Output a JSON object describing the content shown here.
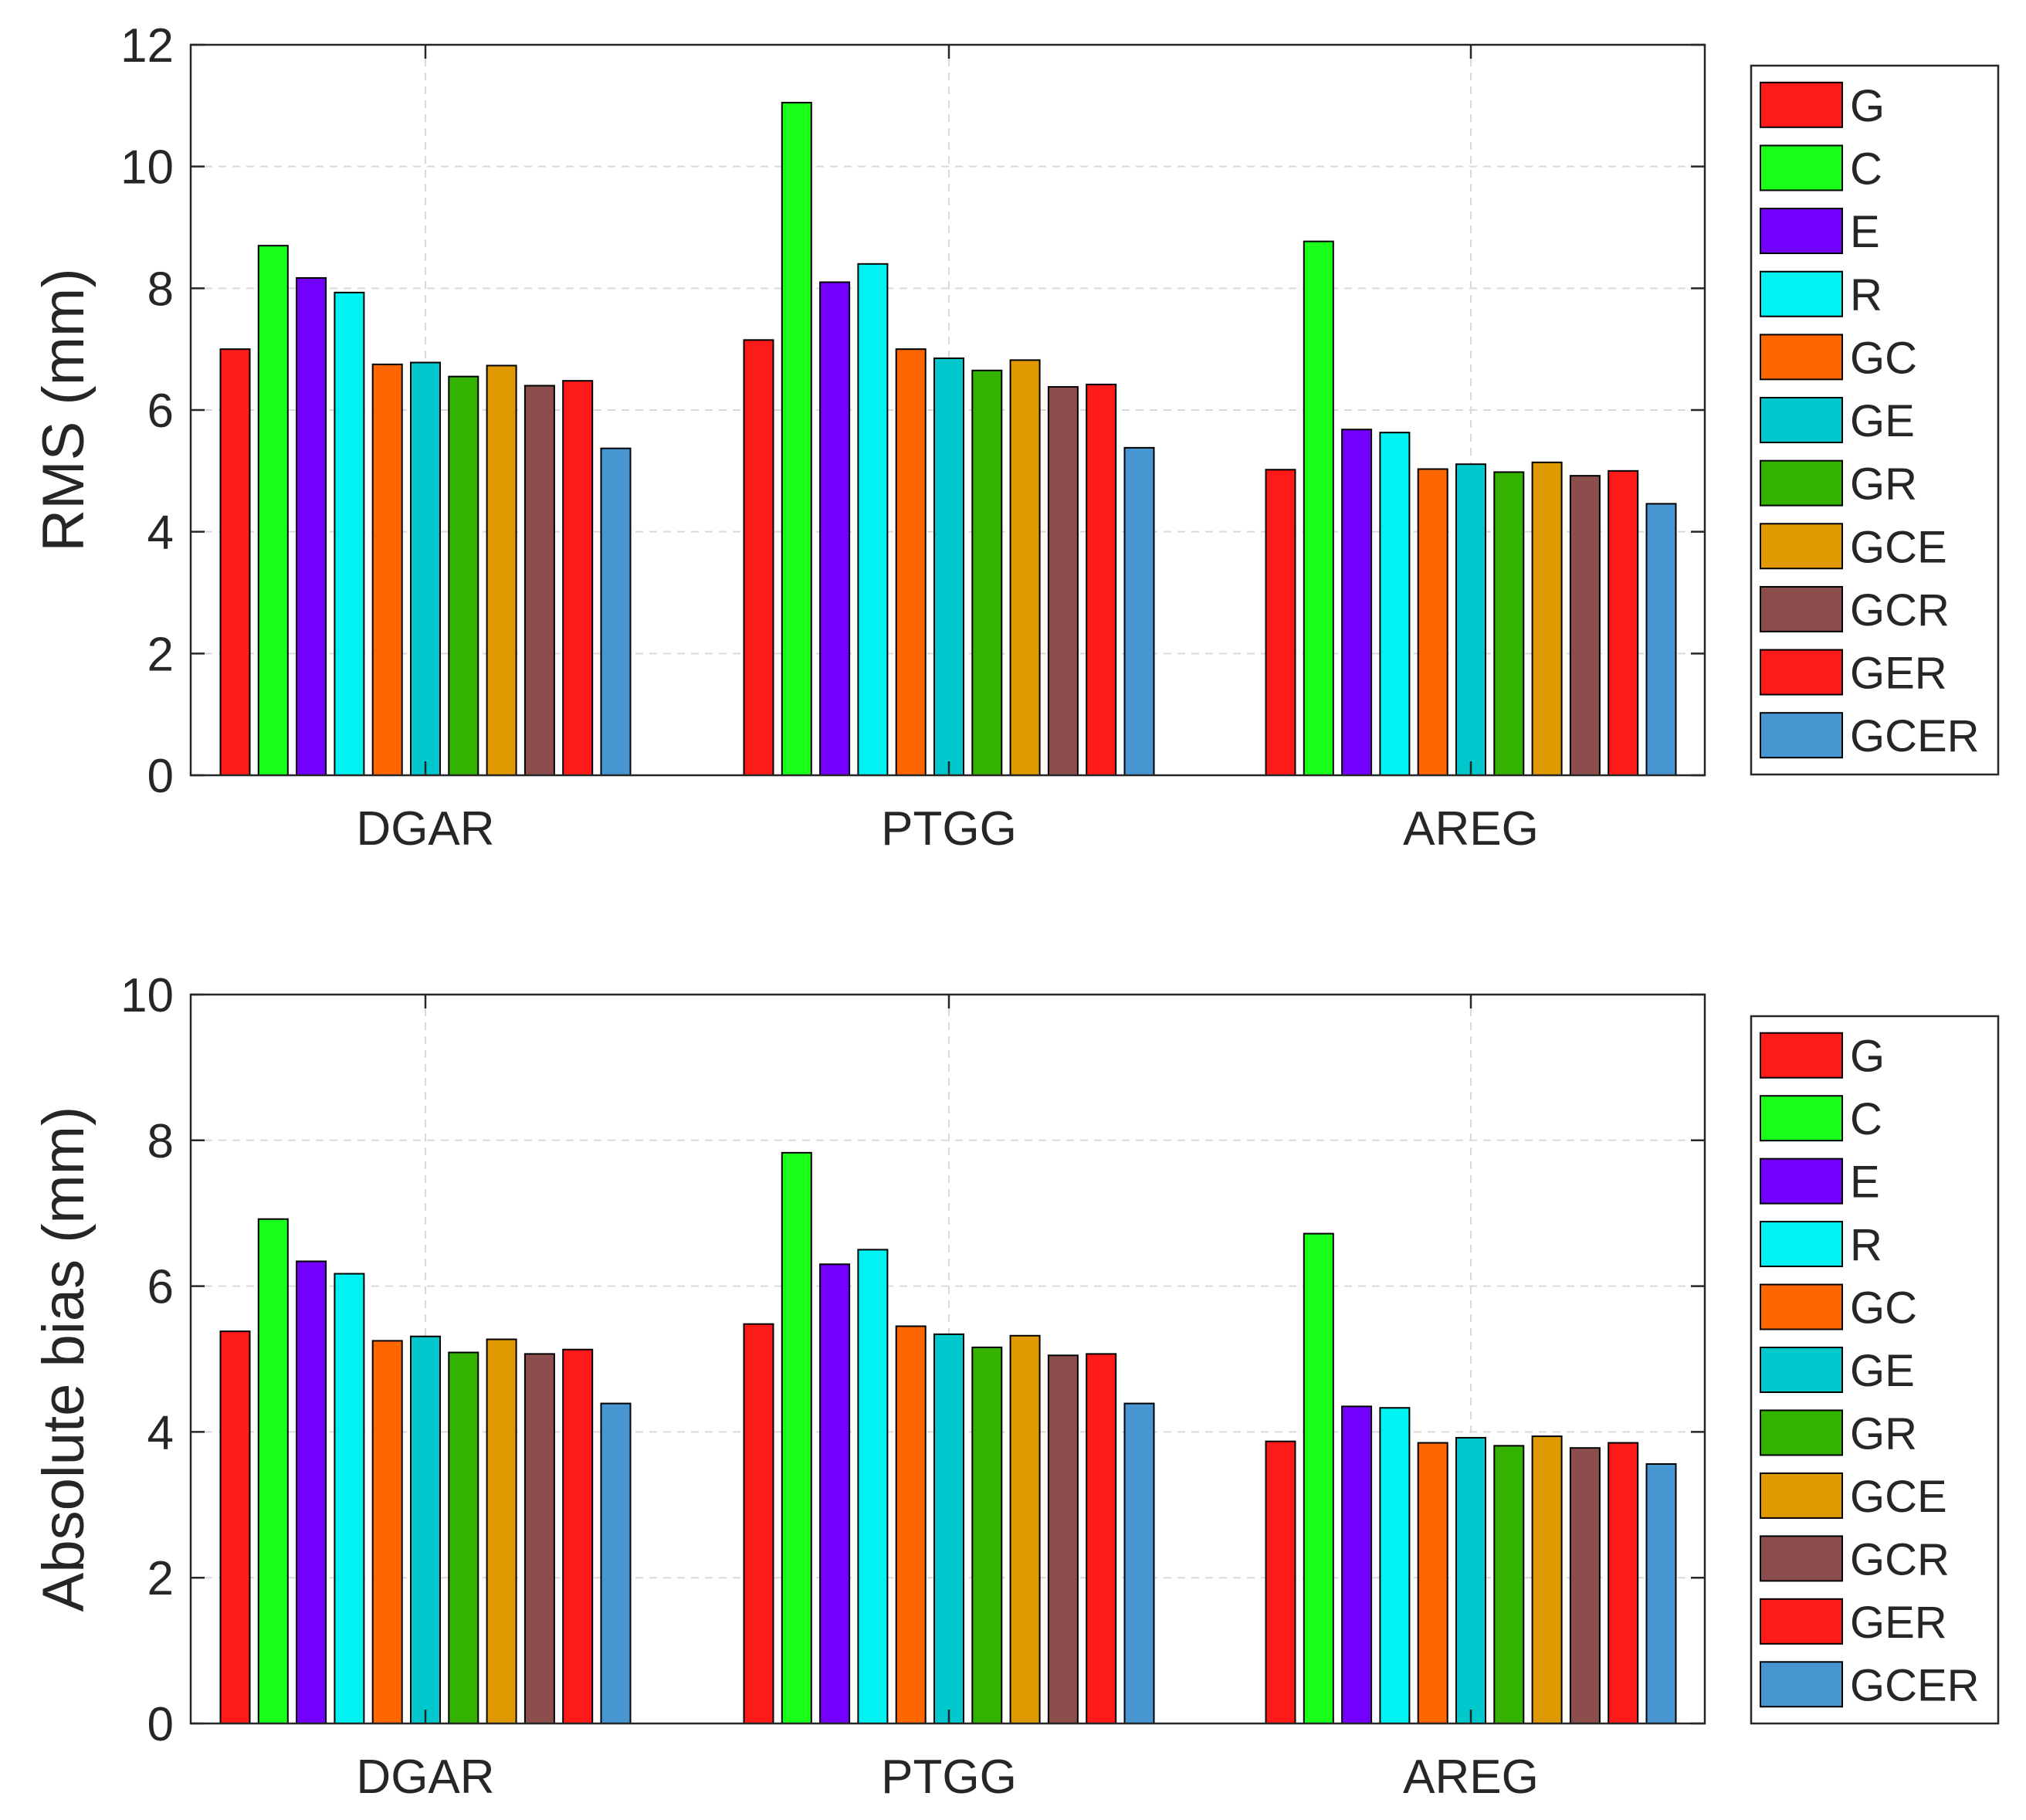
{
  "chart_data": [
    {
      "type": "bar",
      "title": "",
      "xlabel": "",
      "ylabel": "RMS (mm)",
      "ylim": [
        0,
        12
      ],
      "yticks": [
        0,
        2,
        4,
        6,
        8,
        10,
        12
      ],
      "grid": true,
      "legend_position": "outside-right",
      "categories": [
        "DGAR",
        "PTGG",
        "AREG"
      ],
      "series": [
        {
          "name": "G",
          "color": "#ff1a1a",
          "values": [
            7.0,
            7.15,
            5.02
          ]
        },
        {
          "name": "C",
          "color": "#1aff1a",
          "values": [
            8.7,
            11.05,
            8.77
          ]
        },
        {
          "name": "E",
          "color": "#7300ff",
          "values": [
            8.17,
            8.1,
            5.68
          ]
        },
        {
          "name": "R",
          "color": "#00f2f2",
          "values": [
            7.93,
            8.4,
            5.63
          ]
        },
        {
          "name": "GC",
          "color": "#ff6600",
          "values": [
            6.75,
            7.0,
            5.03
          ]
        },
        {
          "name": "GE",
          "color": "#00c8cc",
          "values": [
            6.78,
            6.85,
            5.11
          ]
        },
        {
          "name": "GR",
          "color": "#33b300",
          "values": [
            6.55,
            6.65,
            4.98
          ]
        },
        {
          "name": "GCE",
          "color": "#e09900",
          "values": [
            6.73,
            6.82,
            5.14
          ]
        },
        {
          "name": "GCR",
          "color": "#8c4d4d",
          "values": [
            6.4,
            6.38,
            4.92
          ]
        },
        {
          "name": "GER",
          "color": "#ff1a1a",
          "values": [
            6.48,
            6.42,
            5.0
          ]
        },
        {
          "name": "GCER",
          "color": "#4796d1",
          "values": [
            5.37,
            5.38,
            4.46
          ]
        }
      ]
    },
    {
      "type": "bar",
      "title": "",
      "xlabel": "",
      "ylabel": "Absolute bias (mm)",
      "ylim": [
        0,
        10
      ],
      "yticks": [
        0,
        2,
        4,
        6,
        8,
        10
      ],
      "grid": true,
      "legend_position": "outside-right",
      "categories": [
        "DGAR",
        "PTGG",
        "AREG"
      ],
      "series": [
        {
          "name": "G",
          "color": "#ff1a1a",
          "values": [
            5.38,
            5.48,
            3.87
          ]
        },
        {
          "name": "C",
          "color": "#1aff1a",
          "values": [
            6.92,
            7.83,
            6.72
          ]
        },
        {
          "name": "E",
          "color": "#7300ff",
          "values": [
            6.34,
            6.3,
            4.35
          ]
        },
        {
          "name": "R",
          "color": "#00f2f2",
          "values": [
            6.17,
            6.5,
            4.33
          ]
        },
        {
          "name": "GC",
          "color": "#ff6600",
          "values": [
            5.25,
            5.45,
            3.85
          ]
        },
        {
          "name": "GE",
          "color": "#00c8cc",
          "values": [
            5.31,
            5.34,
            3.92
          ]
        },
        {
          "name": "GR",
          "color": "#33b300",
          "values": [
            5.09,
            5.16,
            3.81
          ]
        },
        {
          "name": "GCE",
          "color": "#e09900",
          "values": [
            5.27,
            5.32,
            3.94
          ]
        },
        {
          "name": "GCR",
          "color": "#8c4d4d",
          "values": [
            5.07,
            5.05,
            3.78
          ]
        },
        {
          "name": "GER",
          "color": "#ff1a1a",
          "values": [
            5.13,
            5.07,
            3.85
          ]
        },
        {
          "name": "GCER",
          "color": "#4796d1",
          "values": [
            4.39,
            4.39,
            3.56
          ]
        }
      ]
    }
  ]
}
